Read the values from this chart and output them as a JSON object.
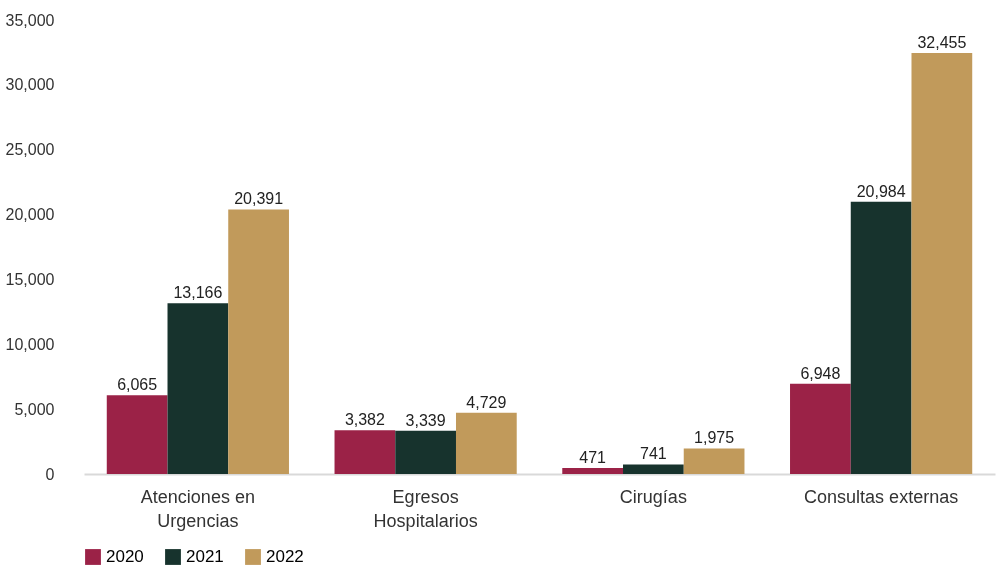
{
  "chart_data": {
    "type": "bar",
    "categories": [
      "Atenciones en Urgencias",
      "Egresos Hospitalarios",
      "Cirugías",
      "Consultas externas"
    ],
    "series": [
      {
        "name": "2020",
        "color": "#9b2247",
        "values": [
          6065,
          3382,
          471,
          6948
        ],
        "value_labels": [
          "6,065",
          "3,382",
          "471",
          "6,948"
        ]
      },
      {
        "name": "2021",
        "color": "#17332d",
        "values": [
          13166,
          3339,
          741,
          20984
        ],
        "value_labels": [
          "13,166",
          "3,339",
          "741",
          "20,984"
        ]
      },
      {
        "name": "2022",
        "color": "#c19a5b",
        "values": [
          20391,
          4729,
          1975,
          32455
        ],
        "value_labels": [
          "20,391",
          "4,729",
          "1,975",
          "32,455"
        ]
      }
    ],
    "ylim": [
      0,
      35000
    ],
    "yticks": [
      0,
      {
        "value": 5000,
        "label": "5,000"
      },
      {
        "value": 10000,
        "label": "10,000"
      },
      {
        "value": 15000,
        "label": "15,000"
      },
      {
        "value": 20000,
        "label": "20,000"
      },
      {
        "value": 25000,
        "label": "25,000"
      },
      {
        "value": 30000,
        "label": "30,000"
      },
      {
        "value": 35000,
        "label": "35,000"
      }
    ],
    "grid": false,
    "legend": "bottom"
  }
}
